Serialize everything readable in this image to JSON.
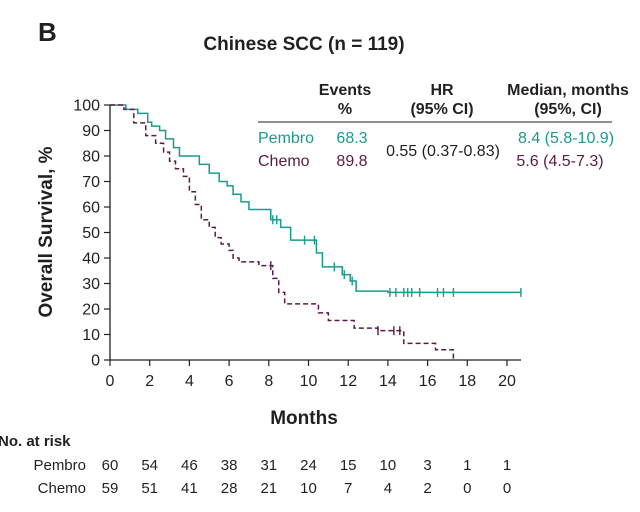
{
  "panel_label": "B",
  "colors": {
    "pembro": "#1a9a8c",
    "chemo": "#5b1a48",
    "text": "#231f20",
    "axis": "#231f20"
  },
  "table_header": {
    "events": [
      "Events",
      "%"
    ],
    "hr": [
      "HR",
      "(95% CI)"
    ],
    "median": [
      "Median, months",
      "(95%, CI)"
    ]
  },
  "table_rows": [
    {
      "arm": "Pembro",
      "events": "68.3",
      "median": "8.4 (5.8-10.9)",
      "color": "#1a9a8c"
    },
    {
      "arm": "Chemo",
      "events": "89.8",
      "median": "5.6 (4.5-7.3)",
      "color": "#5b1a48"
    }
  ],
  "hr_value": "0.55 (0.37-0.83)",
  "risk": {
    "title": "No. at risk",
    "rows": [
      {
        "name": "Pembro",
        "values": [
          "60",
          "54",
          "46",
          "38",
          "31",
          "24",
          "15",
          "10",
          "3",
          "1",
          "1"
        ]
      },
      {
        "name": "Chemo",
        "values": [
          "59",
          "51",
          "41",
          "28",
          "21",
          "10",
          "7",
          "4",
          "2",
          "0",
          "0"
        ]
      }
    ]
  },
  "chart_data": {
    "type": "line",
    "title": "Chinese SCC (n = 119)",
    "xlabel": "Months",
    "ylabel": "Overall Survival, %",
    "xlim": [
      0,
      21
    ],
    "ylim": [
      0,
      100
    ],
    "xticks": [
      0,
      2,
      4,
      6,
      8,
      10,
      12,
      14,
      16,
      18,
      20
    ],
    "yticks": [
      0,
      10,
      20,
      30,
      40,
      50,
      60,
      70,
      80,
      90,
      100
    ],
    "grid": false,
    "legend": "none",
    "series": [
      {
        "name": "Pembro",
        "color": "#1a9a8c",
        "dash": false,
        "x": [
          0,
          0.8,
          1.4,
          1.9,
          2.1,
          2.5,
          2.8,
          3.2,
          3.5,
          4.5,
          5.0,
          5.5,
          5.9,
          6.2,
          6.6,
          7.0,
          8.1,
          8.6,
          9.1,
          10.4,
          10.7,
          11.2,
          11.7,
          12.1,
          12.4,
          14.0,
          20.7
        ],
        "y": [
          100,
          98.3,
          96.7,
          93.3,
          91.7,
          90.0,
          86.7,
          83.3,
          80.0,
          76.7,
          73.3,
          70.0,
          68.3,
          65.0,
          62.0,
          59.0,
          55.0,
          52.0,
          47.0,
          42.0,
          36.5,
          36.5,
          33.5,
          31.0,
          27.0,
          26.5,
          26.5
        ],
        "censor_x": [
          8.2,
          8.4,
          9.8,
          10.3,
          11.3,
          11.8,
          12.2,
          14.1,
          14.4,
          14.8,
          15.0,
          15.2,
          15.6,
          16.5,
          16.8,
          17.3,
          20.7
        ]
      },
      {
        "name": "Chemo",
        "color": "#5b1a48",
        "dash": true,
        "x": [
          0,
          0.7,
          1.2,
          1.8,
          2.3,
          2.7,
          3.0,
          3.3,
          3.7,
          4.0,
          4.3,
          4.6,
          5.0,
          5.3,
          5.6,
          6.0,
          6.2,
          6.5,
          7.5,
          8.2,
          8.5,
          8.8,
          9.3,
          10.5,
          11.0,
          12.3,
          13.5,
          14.8,
          16.4,
          17.3,
          17.3
        ],
        "y": [
          100,
          98.3,
          93.0,
          88.0,
          85.0,
          81.5,
          78.0,
          75.0,
          72.0,
          66.0,
          61.0,
          55.0,
          52.0,
          48.0,
          45.5,
          43.0,
          40.0,
          38.5,
          37.0,
          32.0,
          26.5,
          22.0,
          22.0,
          18.5,
          15.5,
          12.5,
          11.5,
          6.5,
          4.0,
          1.0,
          0
        ],
        "censor_x": [
          8.1,
          13.5,
          14.3,
          14.6
        ]
      }
    ]
  }
}
